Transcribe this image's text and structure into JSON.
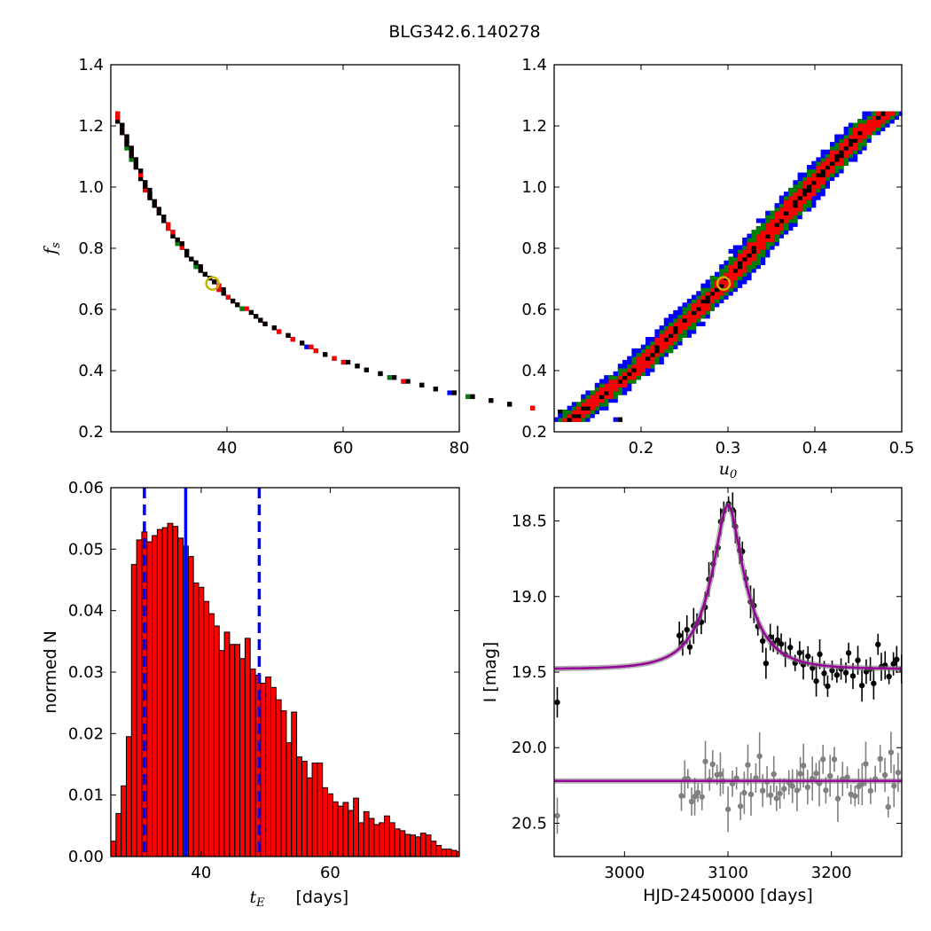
{
  "title": "BLG342.6.140278",
  "chart_data": [
    {
      "id": "tE_fs",
      "type": "heatmap",
      "xlim": [
        20,
        80
      ],
      "ylim": [
        0.2,
        1.4
      ],
      "xticks": [
        "40",
        "60",
        "80"
      ],
      "yticks": [
        "0.2",
        "0.4",
        "0.6",
        "0.8",
        "1.0",
        "1.2",
        "1.4"
      ],
      "xlabel": "",
      "ylabel": "f_s",
      "best_fit": {
        "x": 37.5,
        "y": 0.685
      },
      "curve": {
        "coefficient": 25.7,
        "fs_min": 0.24,
        "fs_max": 1.24
      },
      "bands": [
        {
          "level": "outer",
          "color": "#0000ff",
          "half_width": 0.075
        },
        {
          "level": "middle",
          "color": "#008000",
          "half_width": 0.058
        },
        {
          "level": "inner",
          "color": "#ff0000",
          "half_width": 0.035
        },
        {
          "level": "core",
          "color": "#000000",
          "half_width": 0.012
        }
      ]
    },
    {
      "id": "u0_fs",
      "type": "heatmap",
      "xlim": [
        0.1,
        0.5
      ],
      "ylim": [
        0.2,
        1.4
      ],
      "xticks": [
        "0.2",
        "0.3",
        "0.4",
        "0.5"
      ],
      "yticks": [
        "0.2",
        "0.4",
        "0.6",
        "0.8",
        "1.0",
        "1.2",
        "1.4"
      ],
      "xlabel": "u_0",
      "ylabel": "",
      "best_fit": {
        "x": 0.295,
        "y": 0.685
      },
      "curve": {
        "points": [
          [
            0.12,
            0.24
          ],
          [
            0.2,
            0.42
          ],
          [
            0.3,
            0.7
          ],
          [
            0.4,
            1.02
          ],
          [
            0.45,
            1.17
          ],
          [
            0.48,
            1.24
          ]
        ]
      },
      "bands": [
        {
          "level": "outer",
          "color": "#0000ff",
          "half_width": 0.022
        },
        {
          "level": "middle",
          "color": "#008000",
          "half_width": 0.017
        },
        {
          "level": "inner",
          "color": "#ff0000",
          "half_width": 0.011
        },
        {
          "level": "core",
          "color": "#000000",
          "half_width": 0.003
        }
      ]
    },
    {
      "id": "tE_hist",
      "type": "bar",
      "xlim": [
        26,
        80
      ],
      "ylim": [
        0,
        0.06
      ],
      "xticks": [
        "40",
        "60"
      ],
      "yticks": [
        "0.00",
        "0.01",
        "0.02",
        "0.03",
        "0.04",
        "0.05",
        "0.06"
      ],
      "xlabel": "t_E",
      "xlabel_unit": "[days]",
      "ylabel": "normed N",
      "bar_color": "#ff0000",
      "bin_start": 26.0,
      "bin_width": 0.8,
      "values": [
        0.0025,
        0.007,
        0.0115,
        0.0195,
        0.0475,
        0.0515,
        0.0528,
        0.0512,
        0.0522,
        0.0532,
        0.0535,
        0.0542,
        0.0537,
        0.0518,
        0.0505,
        0.0488,
        0.0445,
        0.0438,
        0.0415,
        0.0395,
        0.0375,
        0.0335,
        0.0365,
        0.0345,
        0.0345,
        0.0322,
        0.0355,
        0.0305,
        0.0295,
        0.0282,
        0.0292,
        0.0275,
        0.0255,
        0.0237,
        0.0185,
        0.0235,
        0.0162,
        0.0155,
        0.0128,
        0.0152,
        0.0152,
        0.0112,
        0.0102,
        0.0089,
        0.0082,
        0.0088,
        0.0075,
        0.0095,
        0.0055,
        0.0073,
        0.0062,
        0.0052,
        0.0055,
        0.0066,
        0.0055,
        0.0045,
        0.0042,
        0.0036,
        0.0035,
        0.0032,
        0.0038,
        0.0035,
        0.0025,
        0.0018,
        0.0012,
        0.0012,
        0.001,
        0.0008,
        0.0007,
        0.0007,
        0.0005,
        0.0005,
        0.0004,
        0.0003,
        0.0003,
        0.0002,
        0.0002,
        0.0002,
        0.0002,
        0.0002,
        0.0002,
        0.0002
      ],
      "vlines": [
        {
          "x": 31.2,
          "style": "dashed",
          "color": "#0000ff"
        },
        {
          "x": 37.6,
          "style": "solid",
          "color": "#0000ff"
        },
        {
          "x": 49.0,
          "style": "dashed",
          "color": "#0000ff"
        }
      ]
    },
    {
      "id": "lightcurve",
      "type": "scatter",
      "xlim": [
        2932,
        3268
      ],
      "ylim": [
        20.72,
        18.28
      ],
      "y_inverted": true,
      "xticks": [
        "3000",
        "3100",
        "3200"
      ],
      "yticks": [
        "18.5",
        "19.0",
        "19.5",
        "20.0",
        "20.5"
      ],
      "xlabel": "HJD-2450000 [days]",
      "ylabel": "I [mag]",
      "model": {
        "t0": 3100,
        "tE": 37.5,
        "u0": 0.295,
        "fs": 0.685,
        "I_base": 19.48,
        "color": "#990099"
      },
      "model_residual_level": 20.22,
      "series": [
        {
          "color": "#000000"
        },
        {
          "color": "#808080"
        }
      ]
    }
  ]
}
